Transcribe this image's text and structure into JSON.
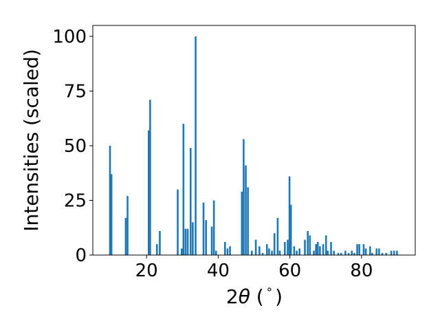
{
  "chart_data": {
    "type": "bar",
    "title": "",
    "xlabel_parts": {
      "prefix": "2",
      "symbol": "θ",
      "suffix": " (",
      "unit": "°",
      "close": ")"
    },
    "ylabel": "Intensities (scaled)",
    "xlim": [
      5,
      95
    ],
    "ylim": [
      0,
      105
    ],
    "xticks": [
      20,
      40,
      60,
      80
    ],
    "yticks": [
      0,
      25,
      50,
      75,
      100
    ],
    "grid": false,
    "bar_color": "#1f77b4",
    "bar_width": 0.5,
    "x": [
      9.8,
      10.2,
      14.2,
      14.7,
      20.6,
      21.0,
      22.9,
      23.7,
      28.7,
      29.8,
      30.3,
      30.9,
      31.5,
      32.3,
      32.9,
      33.7,
      35.9,
      36.6,
      38.2,
      38.8,
      39.4,
      41.9,
      42.6,
      43.3,
      46.6,
      47.1,
      47.7,
      48.3,
      49.4,
      50.5,
      51.5,
      52.4,
      53.6,
      54.2,
      55.0,
      55.7,
      56.6,
      57.2,
      58.6,
      59.4,
      59.9,
      60.3,
      61.2,
      61.9,
      62.7,
      64.2,
      65.0,
      65.6,
      66.7,
      67.3,
      67.8,
      68.4,
      69.3,
      70.1,
      70.6,
      71.5,
      72.3,
      73.5,
      74.3,
      75.5,
      76.4,
      77.3,
      78.0,
      78.8,
      79.4,
      80.6,
      81.2,
      82.4,
      83.0,
      84.2,
      84.9,
      85.8,
      86.9,
      88.3,
      89.1,
      89.9
    ],
    "values": [
      50,
      37,
      17,
      27,
      57,
      71,
      5,
      11,
      30,
      3,
      60,
      12,
      12,
      49,
      15,
      100,
      24,
      16,
      13,
      25,
      2,
      6,
      3,
      4,
      29,
      53,
      41,
      31,
      2,
      7,
      4,
      1,
      5,
      3,
      2,
      10,
      17,
      2,
      6,
      7,
      36,
      23,
      4,
      2,
      3,
      7,
      11,
      9,
      2,
      5,
      6,
      4,
      5,
      9,
      2,
      6,
      2,
      1,
      1,
      2,
      1,
      2,
      1,
      5,
      5,
      5,
      3,
      4,
      1,
      3,
      3,
      1,
      1,
      2,
      2,
      2
    ]
  }
}
